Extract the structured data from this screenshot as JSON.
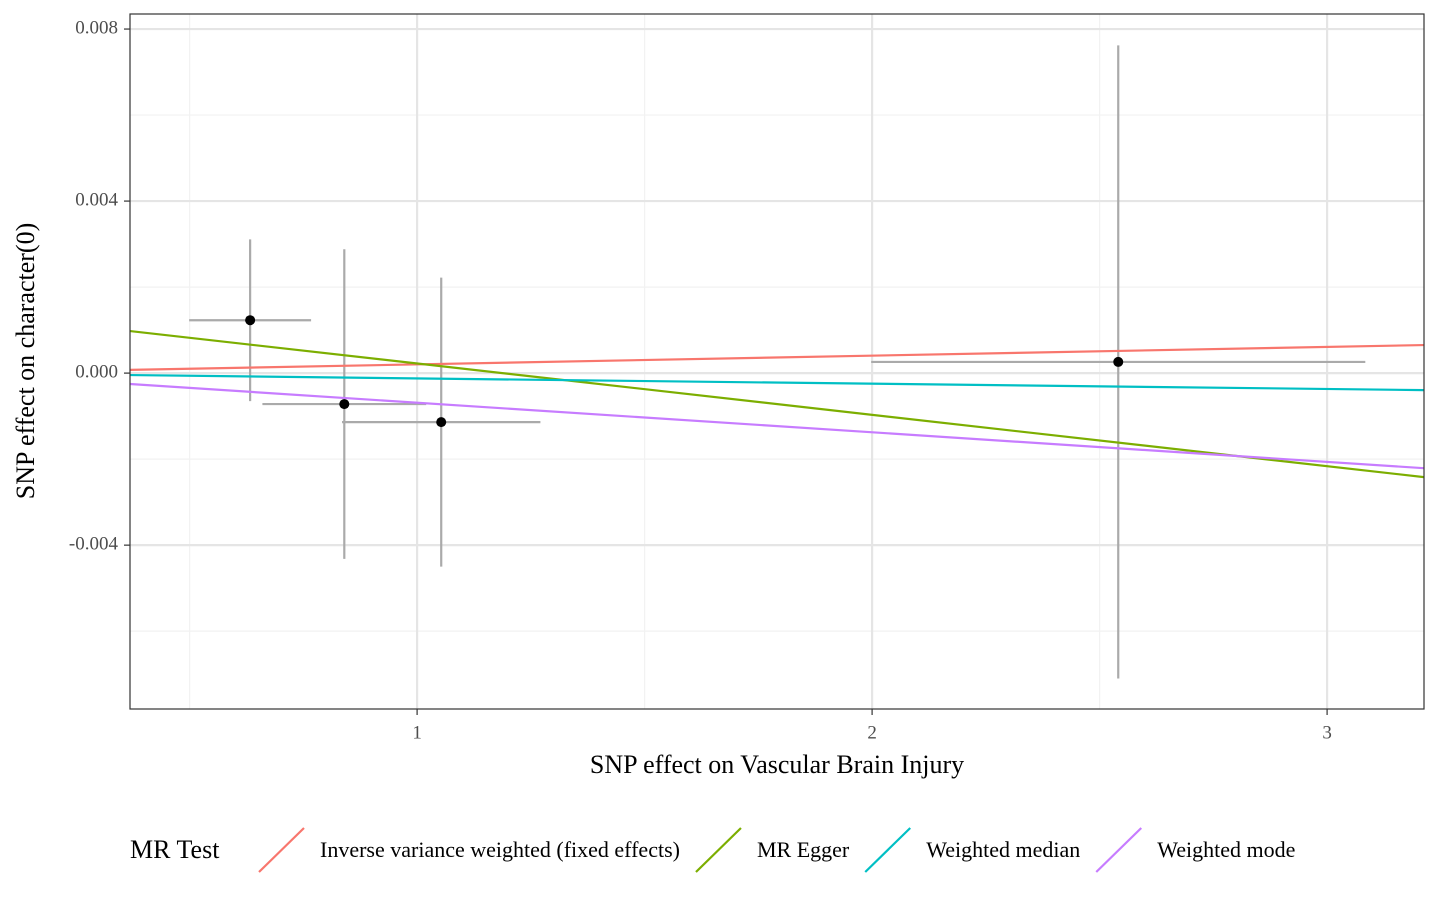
{
  "chart_data": {
    "type": "scatter",
    "x_label": "SNP effect on Vascular Brain Injury",
    "y_label": "SNP effect on character(0)",
    "xlim": [
      0.369,
      3.213
    ],
    "ylim": [
      -0.00781,
      0.00835
    ],
    "xticks": [
      1,
      2,
      3
    ],
    "yticks": [
      {
        "value": -0.004,
        "label": "-0.004"
      },
      {
        "value": 0,
        "label": "0.000"
      },
      {
        "value": 0.004,
        "label": "0.004"
      },
      {
        "value": 0.008,
        "label": "0.008"
      }
    ],
    "x_minor_ticks": [
      0.5,
      1.5,
      2.5
    ],
    "y_minor_ticks": [
      -0.006,
      -0.002,
      0.002,
      0.006
    ],
    "grid": true,
    "points": {
      "x": [
        0.633,
        0.84,
        1.053,
        2.541
      ],
      "y": [
        0.00123,
        -0.00072,
        -0.00114,
        0.00026
      ],
      "x_err": [
        0.134,
        0.18,
        0.218,
        0.543
      ],
      "y_err": [
        0.00188,
        0.0036,
        0.00336,
        0.00736
      ],
      "color": "#000000",
      "error_color": "#aaaaaa"
    },
    "legend_title": "MR Test",
    "legend_position": "bottom",
    "lines": [
      {
        "name": "Inverse variance weighted (fixed effects)",
        "color": "#F8766D",
        "slope": 0.000203,
        "intercept": 0
      },
      {
        "name": "MR Egger",
        "color": "#7CAE00",
        "slope": -0.001194,
        "intercept": 0.001418
      },
      {
        "name": "Weighted median",
        "color": "#00BFC4",
        "slope": -0.000123,
        "intercept": 0
      },
      {
        "name": "Weighted mode",
        "color": "#C77CFF",
        "slope": -0.000688,
        "intercept": 0
      }
    ]
  }
}
